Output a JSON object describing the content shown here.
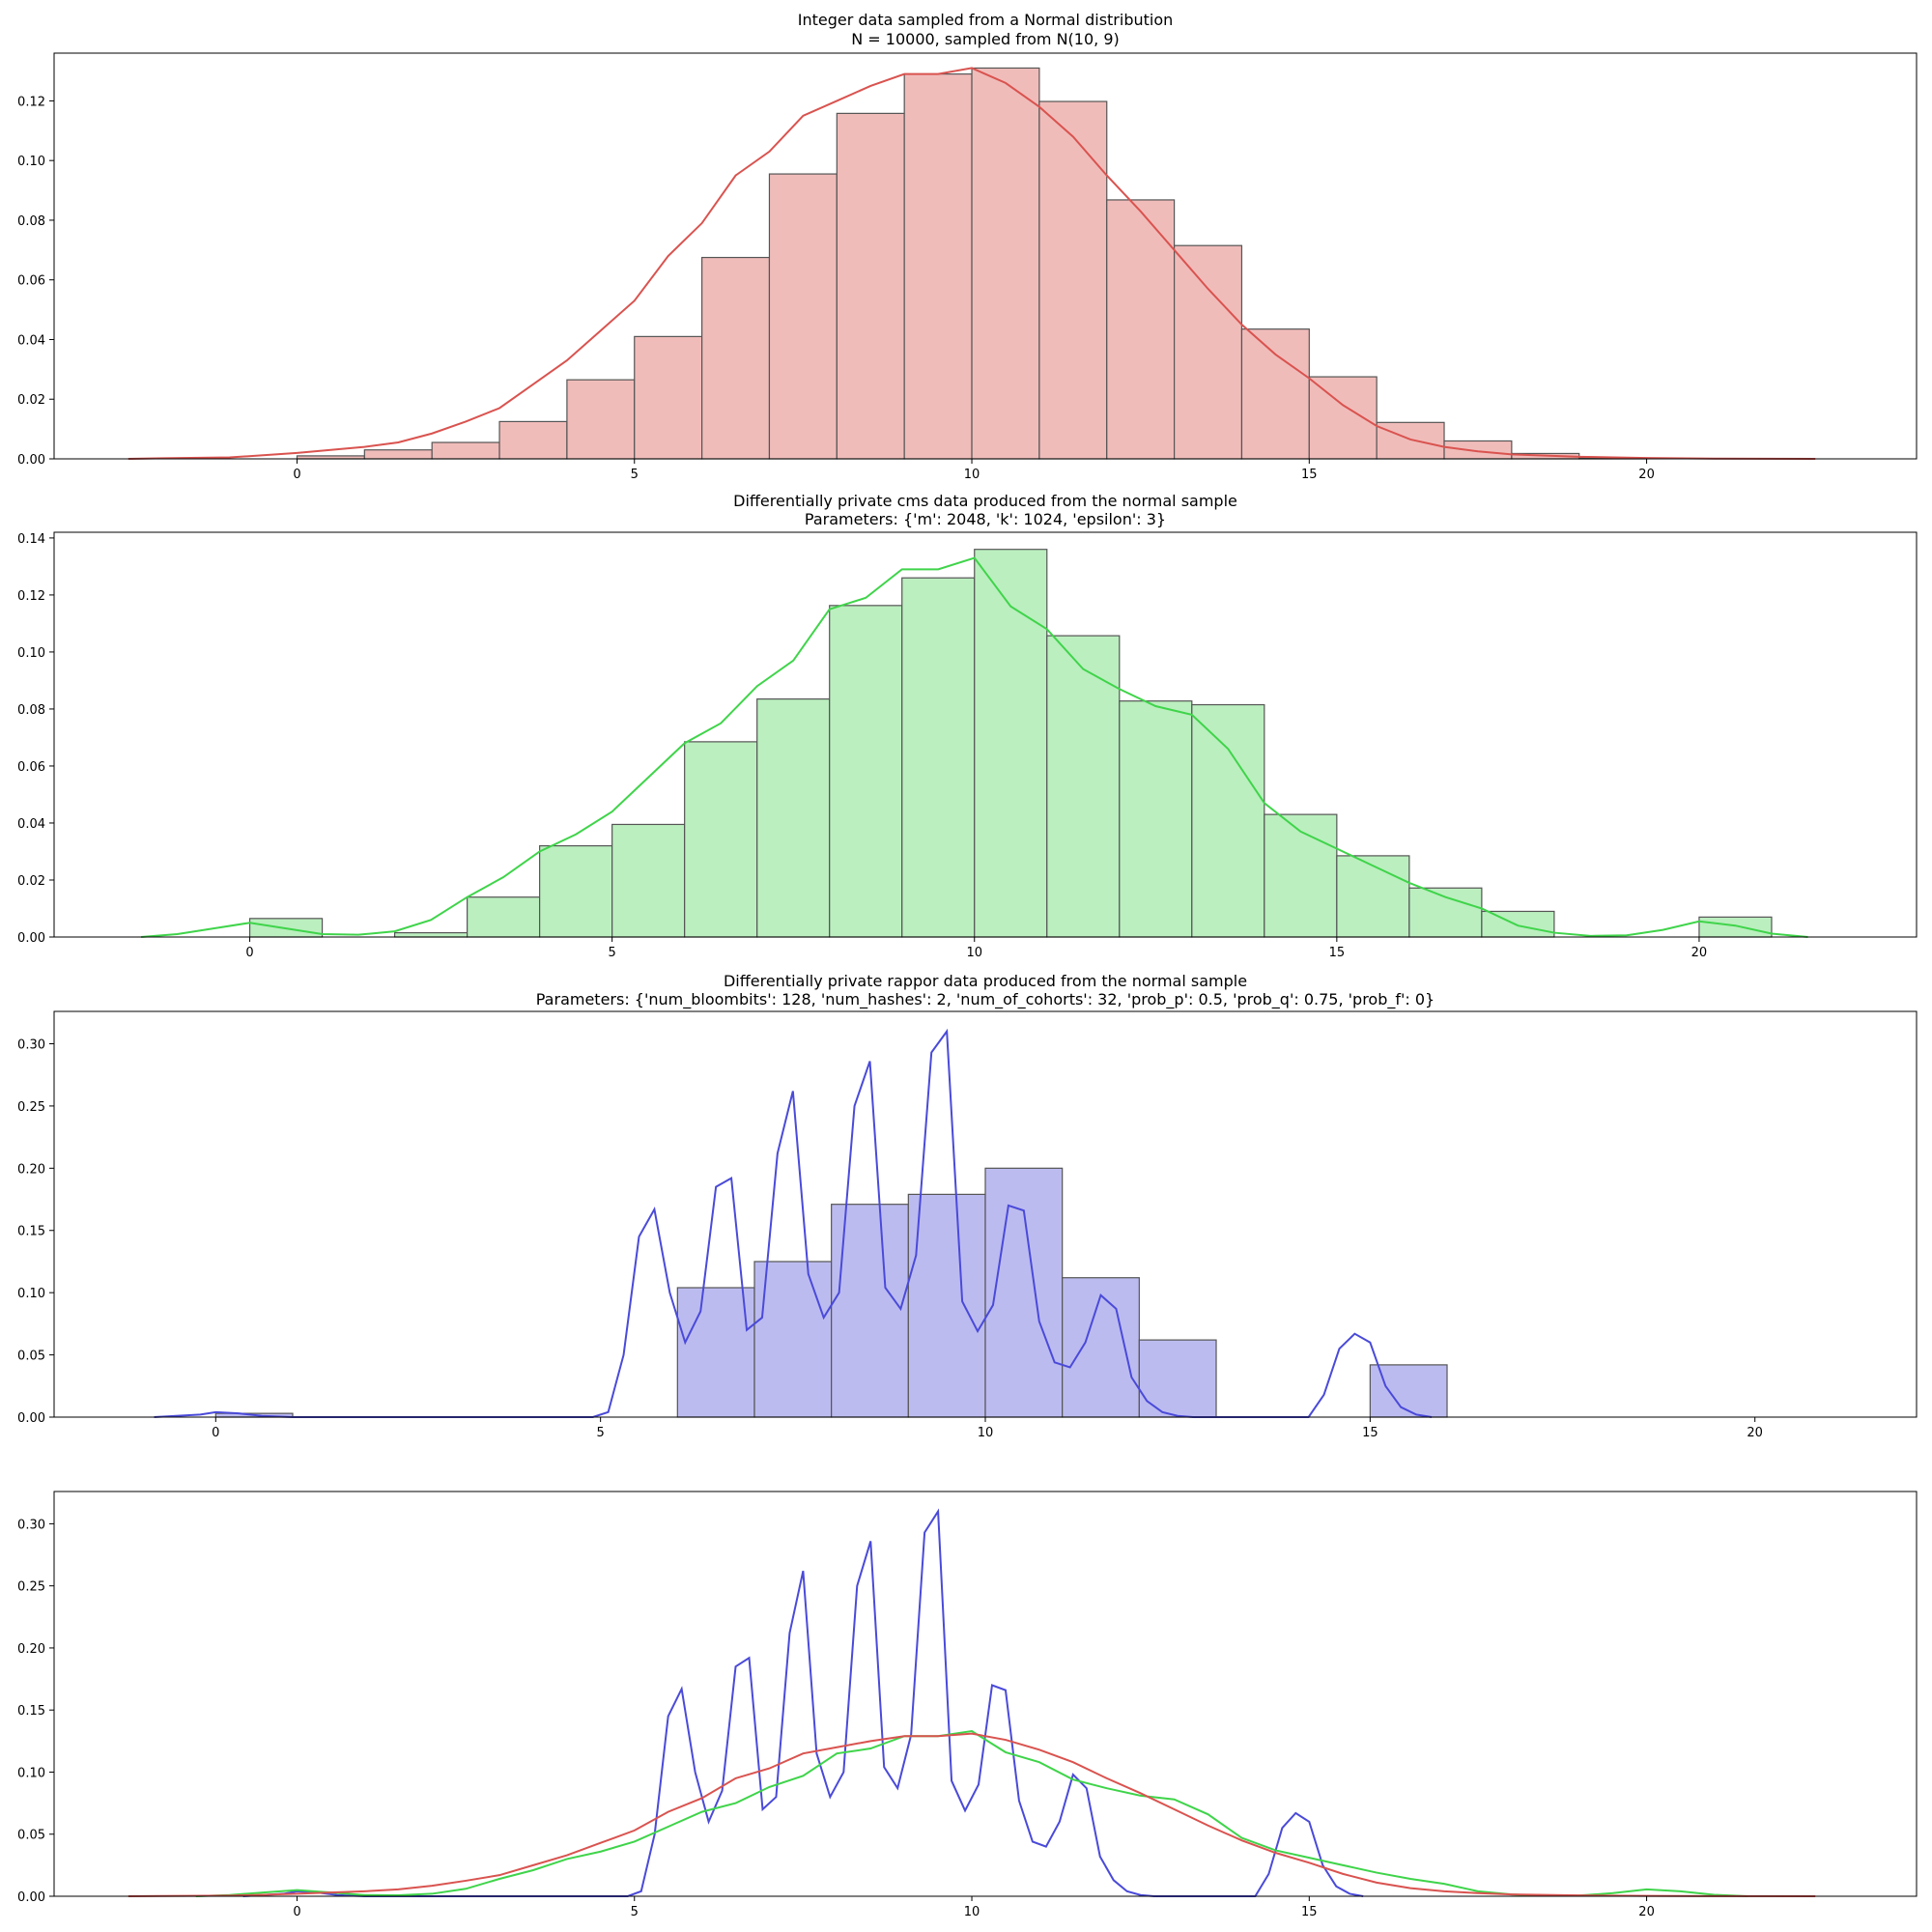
{
  "chart_data": [
    {
      "type": "bar",
      "title": "Integer data sampled from a Normal distribution",
      "subtitle": "N = 10000, sampled from N(10, 9)",
      "color": "#d9534f",
      "fill": "#f0bcba",
      "xlim": [
        -3.6,
        24.0
      ],
      "ylim": [
        0,
        0.136
      ],
      "xticks": [
        0,
        5,
        10,
        15,
        20
      ],
      "yticks": [
        0.0,
        0.02,
        0.04,
        0.06,
        0.08,
        0.1,
        0.12
      ],
      "ytick_labels": [
        "0.00",
        "0.02",
        "0.04",
        "0.06",
        "0.08",
        "0.10",
        "0.12"
      ],
      "bins": [
        0,
        1,
        2,
        3,
        4,
        5,
        6,
        7,
        8,
        9,
        10,
        11,
        12,
        13,
        14,
        15,
        16,
        17,
        18,
        19
      ],
      "bin_width": 1,
      "values": [
        0.001,
        0.003,
        0.0055,
        0.0125,
        0.0265,
        0.041,
        0.0675,
        0.0955,
        0.1158,
        0.129,
        0.131,
        0.1198,
        0.0868,
        0.0715,
        0.0435,
        0.0275,
        0.0122,
        0.006,
        0.0018,
        0.0003
      ],
      "kde": {
        "x": [
          -2.5,
          -2,
          -1,
          -0.5,
          0,
          0.5,
          1,
          1.5,
          2,
          2.5,
          3,
          3.5,
          4,
          4.5,
          5,
          5.5,
          6,
          6.5,
          7,
          7.5,
          8,
          8.5,
          9,
          9.5,
          10,
          10.5,
          11,
          11.5,
          12,
          12.5,
          13,
          13.5,
          14,
          14.5,
          15,
          15.5,
          16,
          16.5,
          17,
          17.5,
          18,
          19,
          20,
          21,
          22.5
        ],
        "y": [
          0.0,
          0.0002,
          0.0005,
          0.0012,
          0.002,
          0.003,
          0.004,
          0.0055,
          0.0085,
          0.0125,
          0.017,
          0.025,
          0.033,
          0.043,
          0.053,
          0.068,
          0.079,
          0.095,
          0.103,
          0.115,
          0.12,
          0.125,
          0.129,
          0.129,
          0.131,
          0.126,
          0.118,
          0.108,
          0.095,
          0.083,
          0.07,
          0.057,
          0.045,
          0.035,
          0.027,
          0.018,
          0.011,
          0.0065,
          0.004,
          0.0025,
          0.0015,
          0.0007,
          0.0003,
          0.0001,
          0.0
        ]
      }
    },
    {
      "type": "bar",
      "title": "Differentially private cms data produced from the normal sample",
      "subtitle": "Parameters: {'m': 2048, 'k': 1024, 'epsilon': 3}",
      "color": "#3fd44a",
      "fill": "#bbefbf",
      "xlim": [
        -2.7,
        23.0
      ],
      "ylim": [
        0,
        0.142
      ],
      "xticks": [
        0,
        5,
        10,
        15,
        20
      ],
      "yticks": [
        0.0,
        0.02,
        0.04,
        0.06,
        0.08,
        0.1,
        0.12,
        0.14
      ],
      "ytick_labels": [
        "0.00",
        "0.02",
        "0.04",
        "0.06",
        "0.08",
        "0.10",
        "0.12",
        "0.14"
      ],
      "bins": [
        0,
        2,
        3,
        4,
        5,
        6,
        7,
        8,
        9,
        10,
        11,
        12,
        13,
        14,
        15,
        16,
        17,
        20
      ],
      "bin_width": 1,
      "values": [
        0.0065,
        0.0015,
        0.014,
        0.032,
        0.0395,
        0.0685,
        0.0835,
        0.1163,
        0.126,
        0.136,
        0.1057,
        0.0828,
        0.0815,
        0.043,
        0.0285,
        0.0172,
        0.009,
        0.007
      ],
      "kde": {
        "x": [
          -1.5,
          -1,
          -0.5,
          0,
          0.5,
          1,
          1.5,
          2,
          2.5,
          3,
          3.5,
          4,
          4.5,
          5,
          5.5,
          6,
          6.5,
          7,
          7.5,
          8,
          8.5,
          9,
          9.5,
          10,
          10.5,
          11,
          11.5,
          12,
          12.5,
          13,
          13.5,
          14,
          14.5,
          15,
          15.5,
          16,
          16.5,
          17,
          17.5,
          18,
          18.5,
          19,
          19.5,
          20,
          20.5,
          21,
          21.5
        ],
        "y": [
          0.0,
          0.001,
          0.003,
          0.005,
          0.003,
          0.001,
          0.0008,
          0.002,
          0.006,
          0.014,
          0.021,
          0.03,
          0.036,
          0.044,
          0.056,
          0.068,
          0.075,
          0.088,
          0.097,
          0.115,
          0.119,
          0.129,
          0.129,
          0.133,
          0.116,
          0.108,
          0.094,
          0.087,
          0.081,
          0.078,
          0.066,
          0.047,
          0.037,
          0.031,
          0.025,
          0.019,
          0.014,
          0.01,
          0.004,
          0.0015,
          0.0004,
          0.0006,
          0.0025,
          0.0055,
          0.004,
          0.0012,
          0.0
        ]
      }
    },
    {
      "type": "bar",
      "title": "Differentially private rappor data produced from the normal sample",
      "subtitle": "Parameters: {'num_bloombits': 128, 'num_hashes': 2, 'num_of_cohorts': 32, 'prob_p': 0.5, 'prob_q': 0.75, 'prob_f': 0}",
      "color": "#4a4ad9",
      "fill": "#bcbbf0",
      "xlim": [
        -2.1,
        22.1
      ],
      "ylim": [
        0,
        0.326
      ],
      "xticks": [
        0,
        5,
        10,
        15,
        20
      ],
      "yticks": [
        0.0,
        0.05,
        0.1,
        0.15,
        0.2,
        0.25,
        0.3
      ],
      "ytick_labels": [
        "0.00",
        "0.05",
        "0.10",
        "0.15",
        "0.20",
        "0.25",
        "0.30"
      ],
      "bins": [
        0,
        6,
        7,
        8,
        9,
        10,
        11,
        12,
        15
      ],
      "bin_width": 1,
      "values": [
        0.003,
        0.104,
        0.125,
        0.171,
        0.179,
        0.2,
        0.112,
        0.062,
        0.042
      ],
      "kde": {
        "x": [
          -0.8,
          -0.2,
          0.0,
          0.3,
          0.6,
          1.0,
          4.9,
          5.1,
          5.3,
          5.5,
          5.7,
          5.9,
          6.1,
          6.3,
          6.5,
          6.7,
          6.9,
          7.1,
          7.3,
          7.5,
          7.7,
          7.9,
          8.1,
          8.3,
          8.5,
          8.7,
          8.9,
          9.1,
          9.3,
          9.5,
          9.7,
          9.9,
          10.1,
          10.3,
          10.5,
          10.7,
          10.9,
          11.1,
          11.3,
          11.5,
          11.7,
          11.9,
          12.1,
          12.3,
          12.5,
          12.7,
          12.9,
          13.1,
          14.2,
          14.4,
          14.6,
          14.8,
          15.0,
          15.2,
          15.4,
          15.6,
          15.8
        ],
        "y": [
          0.0,
          0.002,
          0.004,
          0.003,
          0.001,
          0.0,
          0.0,
          0.004,
          0.05,
          0.145,
          0.167,
          0.1,
          0.06,
          0.085,
          0.185,
          0.192,
          0.07,
          0.08,
          0.212,
          0.262,
          0.115,
          0.08,
          0.1,
          0.25,
          0.286,
          0.104,
          0.087,
          0.13,
          0.293,
          0.31,
          0.093,
          0.069,
          0.09,
          0.17,
          0.166,
          0.077,
          0.044,
          0.04,
          0.06,
          0.098,
          0.087,
          0.032,
          0.013,
          0.004,
          0.001,
          0.0,
          0.0,
          0.0,
          0.0,
          0.018,
          0.055,
          0.067,
          0.06,
          0.025,
          0.008,
          0.002,
          0.0
        ]
      }
    },
    {
      "type": "line",
      "title": "",
      "subtitle": "",
      "xlim": [
        -3.6,
        24.0
      ],
      "ylim": [
        0,
        0.326
      ],
      "xticks": [
        0,
        5,
        10,
        15,
        20
      ],
      "yticks": [
        0.0,
        0.05,
        0.1,
        0.15,
        0.2,
        0.25,
        0.3
      ],
      "ytick_labels": [
        "0.00",
        "0.05",
        "0.10",
        "0.15",
        "0.20",
        "0.25",
        "0.30"
      ],
      "overlay_series": [
        {
          "source_index": 2,
          "color": "#4a4ad9"
        },
        {
          "source_index": 1,
          "color": "#3fd44a"
        },
        {
          "source_index": 0,
          "color": "#d9534f"
        }
      ]
    }
  ]
}
